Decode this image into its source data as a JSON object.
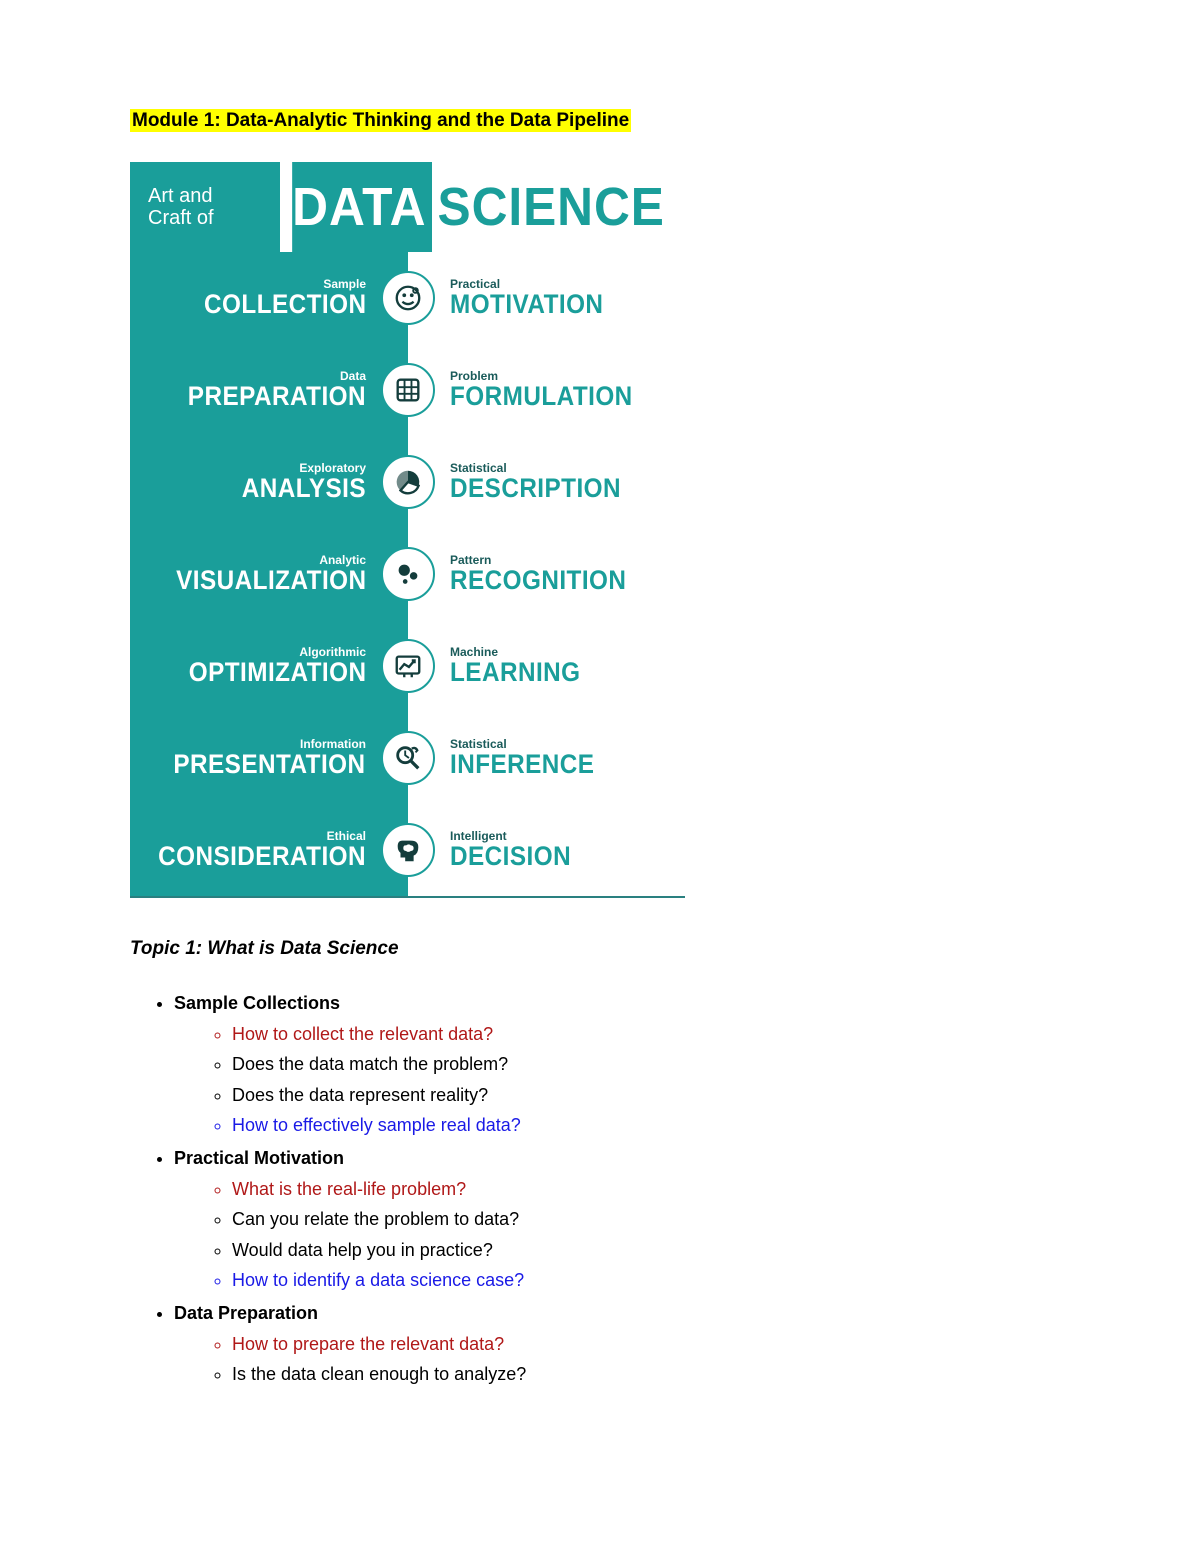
{
  "module_title": "Module 1: Data-Analytic Thinking and the Data Pipeline",
  "infographic": {
    "teal": "#1a9e9a",
    "header": {
      "prefix1": "Art and",
      "prefix2": "Craft of",
      "word1": "DATA",
      "word2": "SCIENCE"
    },
    "rows": [
      {
        "left_small": "Sample",
        "left_big": "COLLECTION",
        "right_small": "Practical",
        "right_big": "MOTIVATION",
        "icon": "face"
      },
      {
        "left_small": "Data",
        "left_big": "PREPARATION",
        "right_small": "Problem",
        "right_big": "FORMULATION",
        "icon": "grid"
      },
      {
        "left_small": "Exploratory",
        "left_big": "ANALYSIS",
        "right_small": "Statistical",
        "right_big": "DESCRIPTION",
        "icon": "pie"
      },
      {
        "left_small": "Analytic",
        "left_big": "VISUALIZATION",
        "right_small": "Pattern",
        "right_big": "RECOGNITION",
        "icon": "bubbles"
      },
      {
        "left_small": "Algorithmic",
        "left_big": "OPTIMIZATION",
        "right_small": "Machine",
        "right_big": "LEARNING",
        "icon": "chart"
      },
      {
        "left_small": "Information",
        "left_big": "PRESENTATION",
        "right_small": "Statistical",
        "right_big": "INFERENCE",
        "icon": "magnify"
      },
      {
        "left_small": "Ethical",
        "left_big": "CONSIDERATION",
        "right_small": "Intelligent",
        "right_big": "DECISION",
        "icon": "brain"
      }
    ]
  },
  "topic_title": "Topic 1: What is Data Science",
  "outline": [
    {
      "label": "Sample Collections",
      "items": [
        {
          "text": "How to collect the relevant data?",
          "cls": "red"
        },
        {
          "text": "Does the data match the problem?",
          "cls": "black"
        },
        {
          "text": "Does the data represent reality?",
          "cls": "black"
        },
        {
          "text": "How to effectively sample real data?",
          "cls": "blue"
        }
      ]
    },
    {
      "label": "Practical Motivation",
      "items": [
        {
          "text": "What is the real-life problem?",
          "cls": "red"
        },
        {
          "text": "Can you relate the problem to data?",
          "cls": "black"
        },
        {
          "text": "Would data help you in practice?",
          "cls": "black"
        },
        {
          "text": "How to identify a data science case?",
          "cls": "blue"
        }
      ]
    },
    {
      "label": "Data Preparation",
      "items": [
        {
          "text": "How to prepare the relevant data?",
          "cls": "red"
        },
        {
          "text": "Is the data clean enough to analyze?",
          "cls": "black"
        }
      ]
    }
  ]
}
